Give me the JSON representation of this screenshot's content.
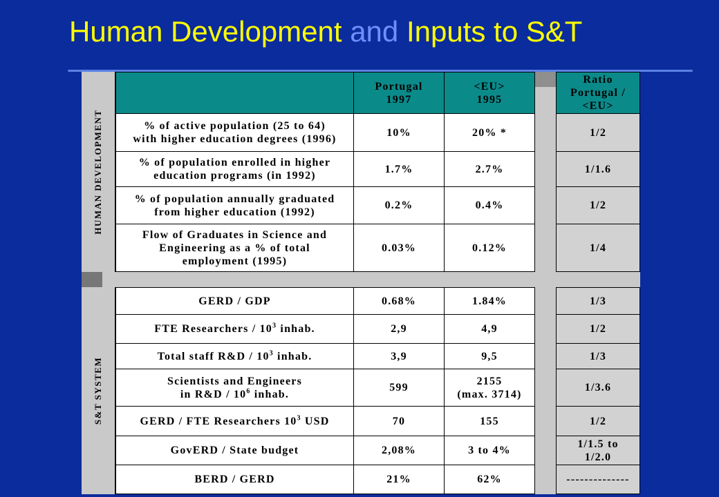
{
  "title": {
    "part1": "Human Development ",
    "part2": "and",
    "part3": " Inputs to S&T"
  },
  "columns": {
    "portugal": [
      "Portugal",
      "1997"
    ],
    "eu": [
      "<EU>",
      "1995"
    ],
    "ratio": [
      "Ratio",
      "Portugal /",
      "<EU>"
    ]
  },
  "sections": {
    "human": "HUMAN DEVELOPMENT",
    "st": "S&T SYSTEM"
  },
  "human_rows": [
    {
      "label": [
        "% of active population (25 to 64)",
        "with higher education degrees (1996)"
      ],
      "pt": "10%",
      "eu": "20% *",
      "ratio": "1/2"
    },
    {
      "label": [
        "% of population enrolled in higher",
        "education programs (in 1992)"
      ],
      "pt": "1.7%",
      "eu": "2.7%",
      "ratio": "1/1.6"
    },
    {
      "label": [
        "% of population annually graduated",
        "from higher education (1992)"
      ],
      "pt": "0.2%",
      "eu": "0.4%",
      "ratio": "1/2"
    },
    {
      "label": [
        "Flow of Graduates in Science and",
        "Engineering as a % of total",
        "employment (1995)"
      ],
      "pt": "0.03%",
      "eu": "0.12%",
      "ratio": "1/4"
    }
  ],
  "st_rows": [
    {
      "label": [
        "GERD / GDP"
      ],
      "pt": "0.68%",
      "eu": "1.84%",
      "ratio": "1/3"
    },
    {
      "label": [
        "FTE Researchers / 10",
        "3",
        " inhab."
      ],
      "pt": "2,9",
      "eu": "4,9",
      "ratio": "1/2"
    },
    {
      "label": [
        "Total staff R&D / 10",
        "3",
        " inhab."
      ],
      "pt": "3,9",
      "eu": "9,5",
      "ratio": "1/3"
    },
    {
      "label": [
        "Scientists and Engineers",
        "in R&D / 10",
        "6",
        " inhab."
      ],
      "pt": "599",
      "eu": [
        "2155",
        "(max. 3714)"
      ],
      "ratio": "1/3.6"
    },
    {
      "label": [
        "GERD / FTE Researchers 10",
        "3",
        " USD"
      ],
      "pt": "70",
      "eu": "155",
      "ratio": "1/2"
    },
    {
      "label": [
        "GovERD / State budget"
      ],
      "pt": "2,08%",
      "eu": "3 to 4%",
      "ratio": [
        "1/1.5 to",
        "1/2.0"
      ]
    },
    {
      "label": [
        "BERD / GERD"
      ],
      "pt": "21%",
      "eu": "62%",
      "ratio": "--------------"
    }
  ]
}
